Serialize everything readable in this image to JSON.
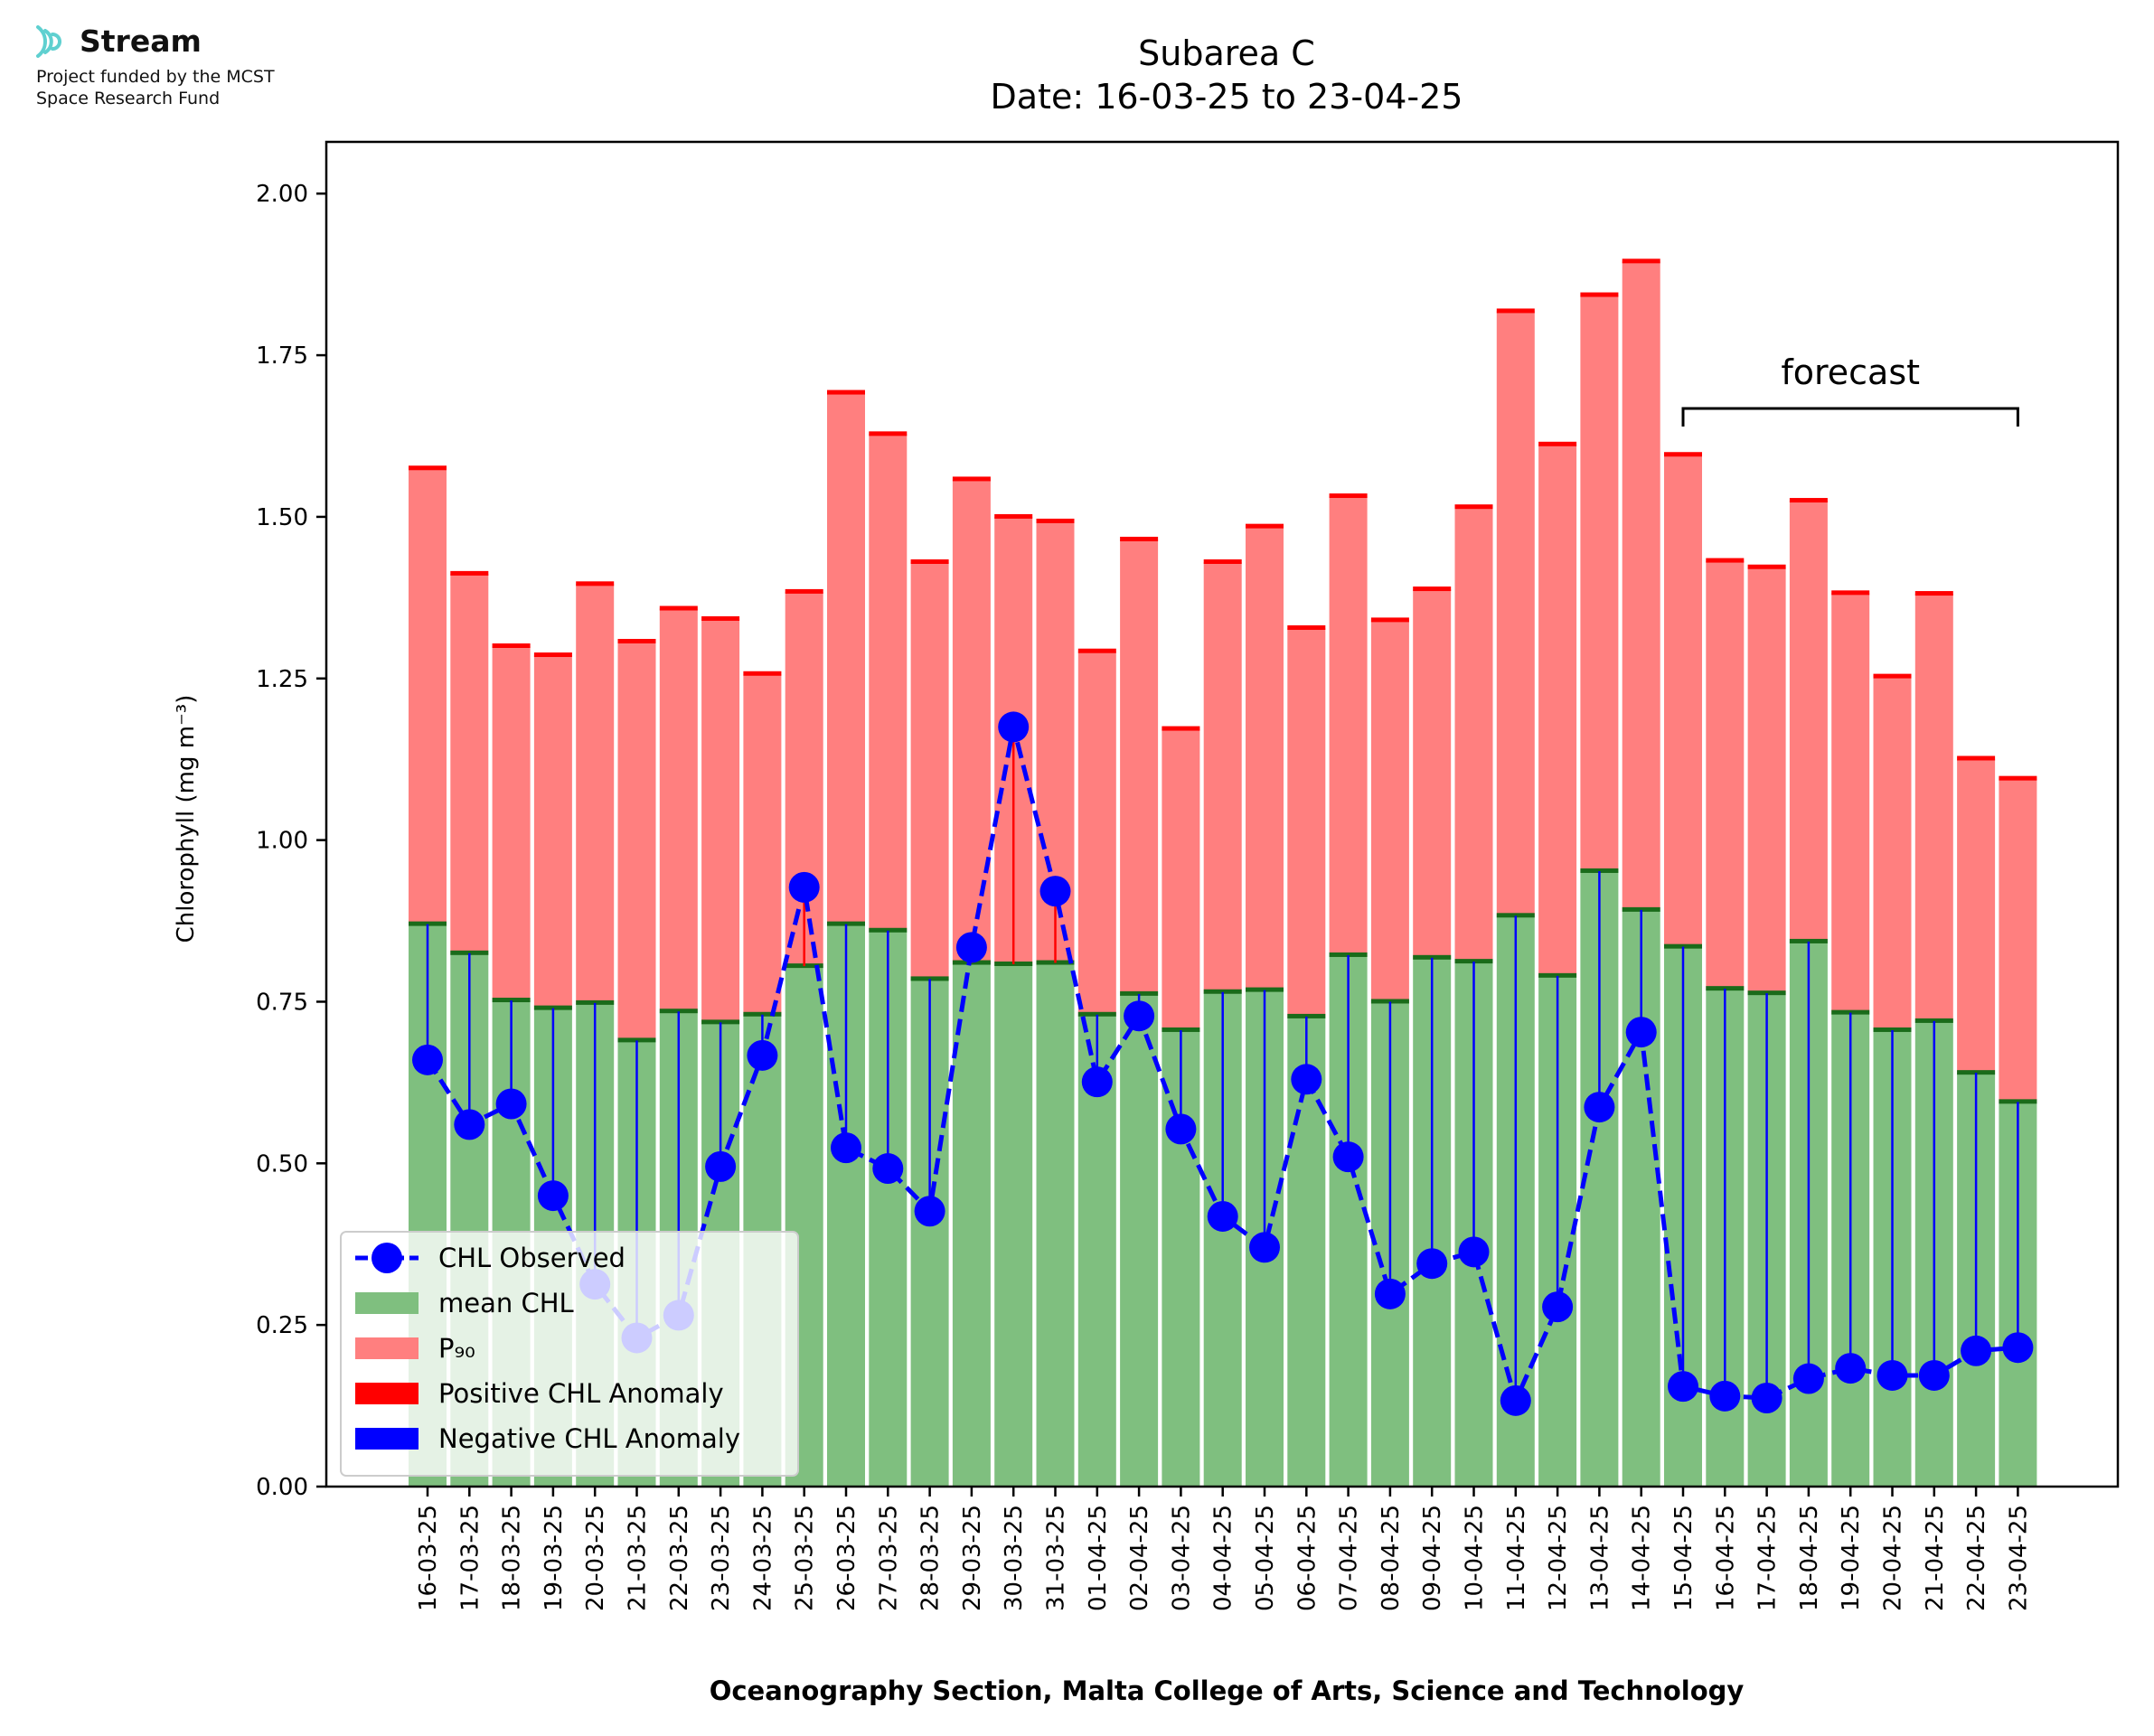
{
  "logo": {
    "name": "Stream",
    "line1": "Project funded by the MCST",
    "line2": "Space Research Fund",
    "color": "#5fd0d0"
  },
  "chart_data": {
    "type": "bar",
    "title": "Subarea C",
    "subtitle": "Date: 16-03-25 to 23-04-25",
    "ylabel": "Chlorophyll (mg m⁻³)",
    "xlabel": "Oceanography Section, Malta College of Arts, Science and Technology",
    "ylim": [
      0,
      2.08
    ],
    "yticks": [
      "0.00",
      "0.25",
      "0.50",
      "0.75",
      "1.00",
      "1.25",
      "1.50",
      "1.75",
      "2.00"
    ],
    "categories": [
      "16-03-25",
      "17-03-25",
      "18-03-25",
      "19-03-25",
      "20-03-25",
      "21-03-25",
      "22-03-25",
      "23-03-25",
      "24-03-25",
      "25-03-25",
      "26-03-25",
      "27-03-25",
      "28-03-25",
      "29-03-25",
      "30-03-25",
      "31-03-25",
      "01-04-25",
      "02-04-25",
      "03-04-25",
      "04-04-25",
      "05-04-25",
      "06-04-25",
      "07-04-25",
      "08-04-25",
      "09-04-25",
      "10-04-25",
      "11-04-25",
      "12-04-25",
      "13-04-25",
      "14-04-25",
      "15-04-25",
      "16-04-25",
      "17-04-25",
      "18-04-25",
      "19-04-25",
      "20-04-25",
      "21-04-25",
      "22-04-25",
      "23-04-25"
    ],
    "series": [
      {
        "name": "mean CHL",
        "kind": "bar",
        "color": "#7fbf7f",
        "cap_color": "#1a6b1a",
        "values": [
          0.87,
          0.825,
          0.752,
          0.74,
          0.748,
          0.69,
          0.735,
          0.718,
          0.73,
          0.805,
          0.87,
          0.86,
          0.785,
          0.81,
          0.808,
          0.81,
          0.73,
          0.762,
          0.706,
          0.765,
          0.768,
          0.727,
          0.822,
          0.75,
          0.818,
          0.812,
          0.883,
          0.79,
          0.952,
          0.892,
          0.835,
          0.77,
          0.763,
          0.843,
          0.733,
          0.706,
          0.72,
          0.64,
          0.595
        ]
      },
      {
        "name": "P₉₀",
        "kind": "bar",
        "color": "#ff7f7f",
        "cap_color": "#ff0000",
        "values": [
          1.575,
          1.412,
          1.3,
          1.286,
          1.396,
          1.307,
          1.358,
          1.342,
          1.257,
          1.384,
          1.692,
          1.628,
          1.43,
          1.558,
          1.5,
          1.493,
          1.292,
          1.465,
          1.172,
          1.43,
          1.485,
          1.328,
          1.532,
          1.34,
          1.388,
          1.515,
          1.818,
          1.612,
          1.843,
          1.895,
          1.596,
          1.432,
          1.422,
          1.525,
          1.382,
          1.253,
          1.381,
          1.126,
          1.095
        ]
      },
      {
        "name": "CHL Observed",
        "kind": "line",
        "color": "#0000ff",
        "values": [
          0.66,
          0.56,
          0.592,
          0.45,
          0.313,
          0.23,
          0.265,
          0.495,
          0.667,
          0.927,
          0.524,
          0.492,
          0.426,
          0.834,
          1.175,
          0.921,
          0.626,
          0.728,
          0.553,
          0.418,
          0.37,
          0.63,
          0.51,
          0.298,
          0.345,
          0.363,
          0.133,
          0.278,
          0.587,
          0.703,
          0.155,
          0.14,
          0.137,
          0.167,
          0.183,
          0.172,
          0.172,
          0.21,
          0.215
        ]
      }
    ],
    "anomaly_legend": [
      {
        "name": "Positive CHL Anomaly",
        "color": "#ff0000"
      },
      {
        "name": "Negative CHL Anomaly",
        "color": "#0000ff"
      }
    ],
    "annotation": {
      "text": "forecast",
      "from": "15-04-25",
      "to": "23-04-25"
    },
    "legend_position": "lower-left",
    "grid": false
  }
}
